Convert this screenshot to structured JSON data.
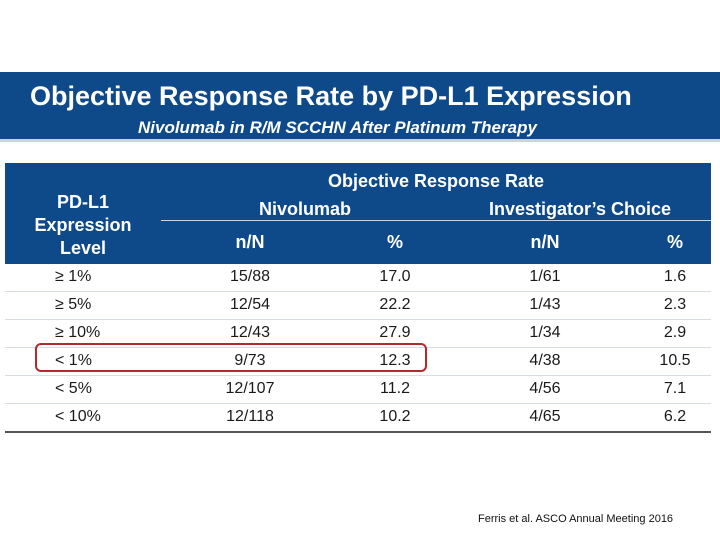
{
  "slide": {
    "title": "Objective Response Rate by PD-L1 Expression",
    "subtitle": "Nivolumab in R/M SCCHN After Platinum Therapy"
  },
  "table": {
    "rowgroup_header": [
      "PD-L1",
      "Expression",
      "Level"
    ],
    "group_header": "Objective Response Rate",
    "arm_headers": [
      "Nivolumab",
      "Investigator’s Choice"
    ],
    "sub_headers": [
      "n/N",
      "%",
      "n/N",
      "%"
    ],
    "rows": [
      [
        "≥ 1%",
        "15/88",
        "17.0",
        "1/61",
        "1.6"
      ],
      [
        "≥ 5%",
        "12/54",
        "22.2",
        "1/43",
        "2.3"
      ],
      [
        "≥ 10%",
        "12/43",
        "27.9",
        "1/34",
        "2.9"
      ],
      [
        "< 1%",
        "9/73",
        "12.3",
        "4/38",
        "10.5"
      ],
      [
        "< 5%",
        "12/107",
        "11.2",
        "4/56",
        "7.1"
      ],
      [
        "< 10%",
        "12/118",
        "10.2",
        "4/65",
        "6.2"
      ]
    ],
    "highlight_color": "#b22a2a"
  },
  "citation": "Ferris et al. ASCO Annual Meeting 2016",
  "colors": {
    "header_blue": "#0e4a8a"
  }
}
